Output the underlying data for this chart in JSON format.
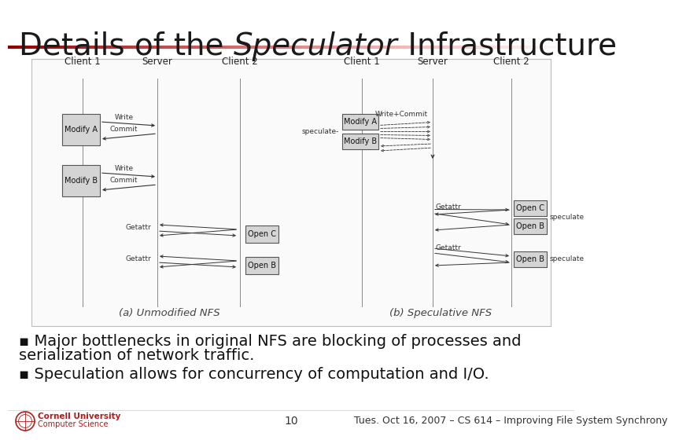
{
  "title_part1": "Details of the ",
  "title_italic": "Speculator",
  "title_part2": " Infrastructure",
  "title_fontsize": 28,
  "title_color": "#1a1a1a",
  "bg_color": "#ffffff",
  "line_color_left": "#8b0000",
  "line_color_right": "#ffffff",
  "bullet1_line1": "▪ Major bottlenecks in original NFS are blocking of processes and",
  "bullet1_line2": "serialization of network traffic.",
  "bullet2": "▪ Speculation allows for concurrency of computation and I/O.",
  "bullet_fontsize": 14,
  "footer_page": "10",
  "footer_text": "Tues. Oct 16, 2007 – CS 614 – Improving File System Synchrony",
  "footer_fontsize": 9,
  "box_color": "#d4d4d4",
  "box_edge": "#555555",
  "arrow_color": "#333333",
  "label_a_caption": "(a) Unmodified NFS",
  "label_b_caption": "(b) Speculative NFS",
  "caption_fontsize": 9.5,
  "header_fontsize": 8.5,
  "diagram_border": "#bbbbbb",
  "cornell_red": "#b31b1b"
}
